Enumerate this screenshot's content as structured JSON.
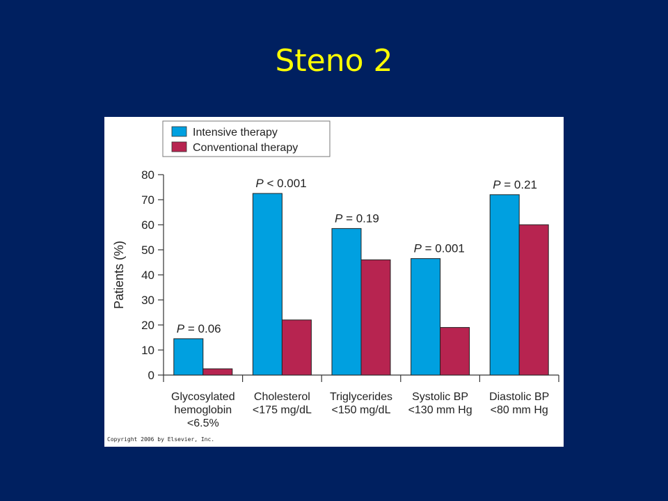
{
  "slide": {
    "title": "Steno 2"
  },
  "colors": {
    "background": "#002060",
    "title": "#ffff00",
    "intensive": "#00a0e0",
    "conventional": "#b72450"
  },
  "chart_data": {
    "type": "bar",
    "categories": [
      [
        "Glycosylated",
        "hemoglobin",
        "<6.5%"
      ],
      [
        "Cholesterol",
        "<175 mg/dL"
      ],
      [
        "Triglycerides",
        "<150 mg/dL"
      ],
      [
        "Systolic BP",
        "<130 mm Hg"
      ],
      [
        "Diastolic BP",
        "<80 mm Hg"
      ]
    ],
    "series": [
      {
        "name": "Intensive therapy",
        "color": "#00a0e0",
        "values": [
          14.5,
          72.5,
          58.5,
          46.5,
          72
        ]
      },
      {
        "name": "Conventional therapy",
        "color": "#b72450",
        "values": [
          2.5,
          22,
          46,
          19,
          60
        ]
      }
    ],
    "p_values": [
      "= 0.06",
      "< 0.001",
      "= 0.19",
      "= 0.001",
      "= 0.21"
    ],
    "p_label": "P",
    "ylabel": "Patients (%)",
    "xlabel": "",
    "ylim": [
      0,
      80
    ],
    "yticks": [
      0,
      10,
      20,
      30,
      40,
      50,
      60,
      70,
      80
    ],
    "legend": "top-left",
    "grid": false,
    "copyright": "Copyright 2006 by Elsevier, Inc."
  }
}
